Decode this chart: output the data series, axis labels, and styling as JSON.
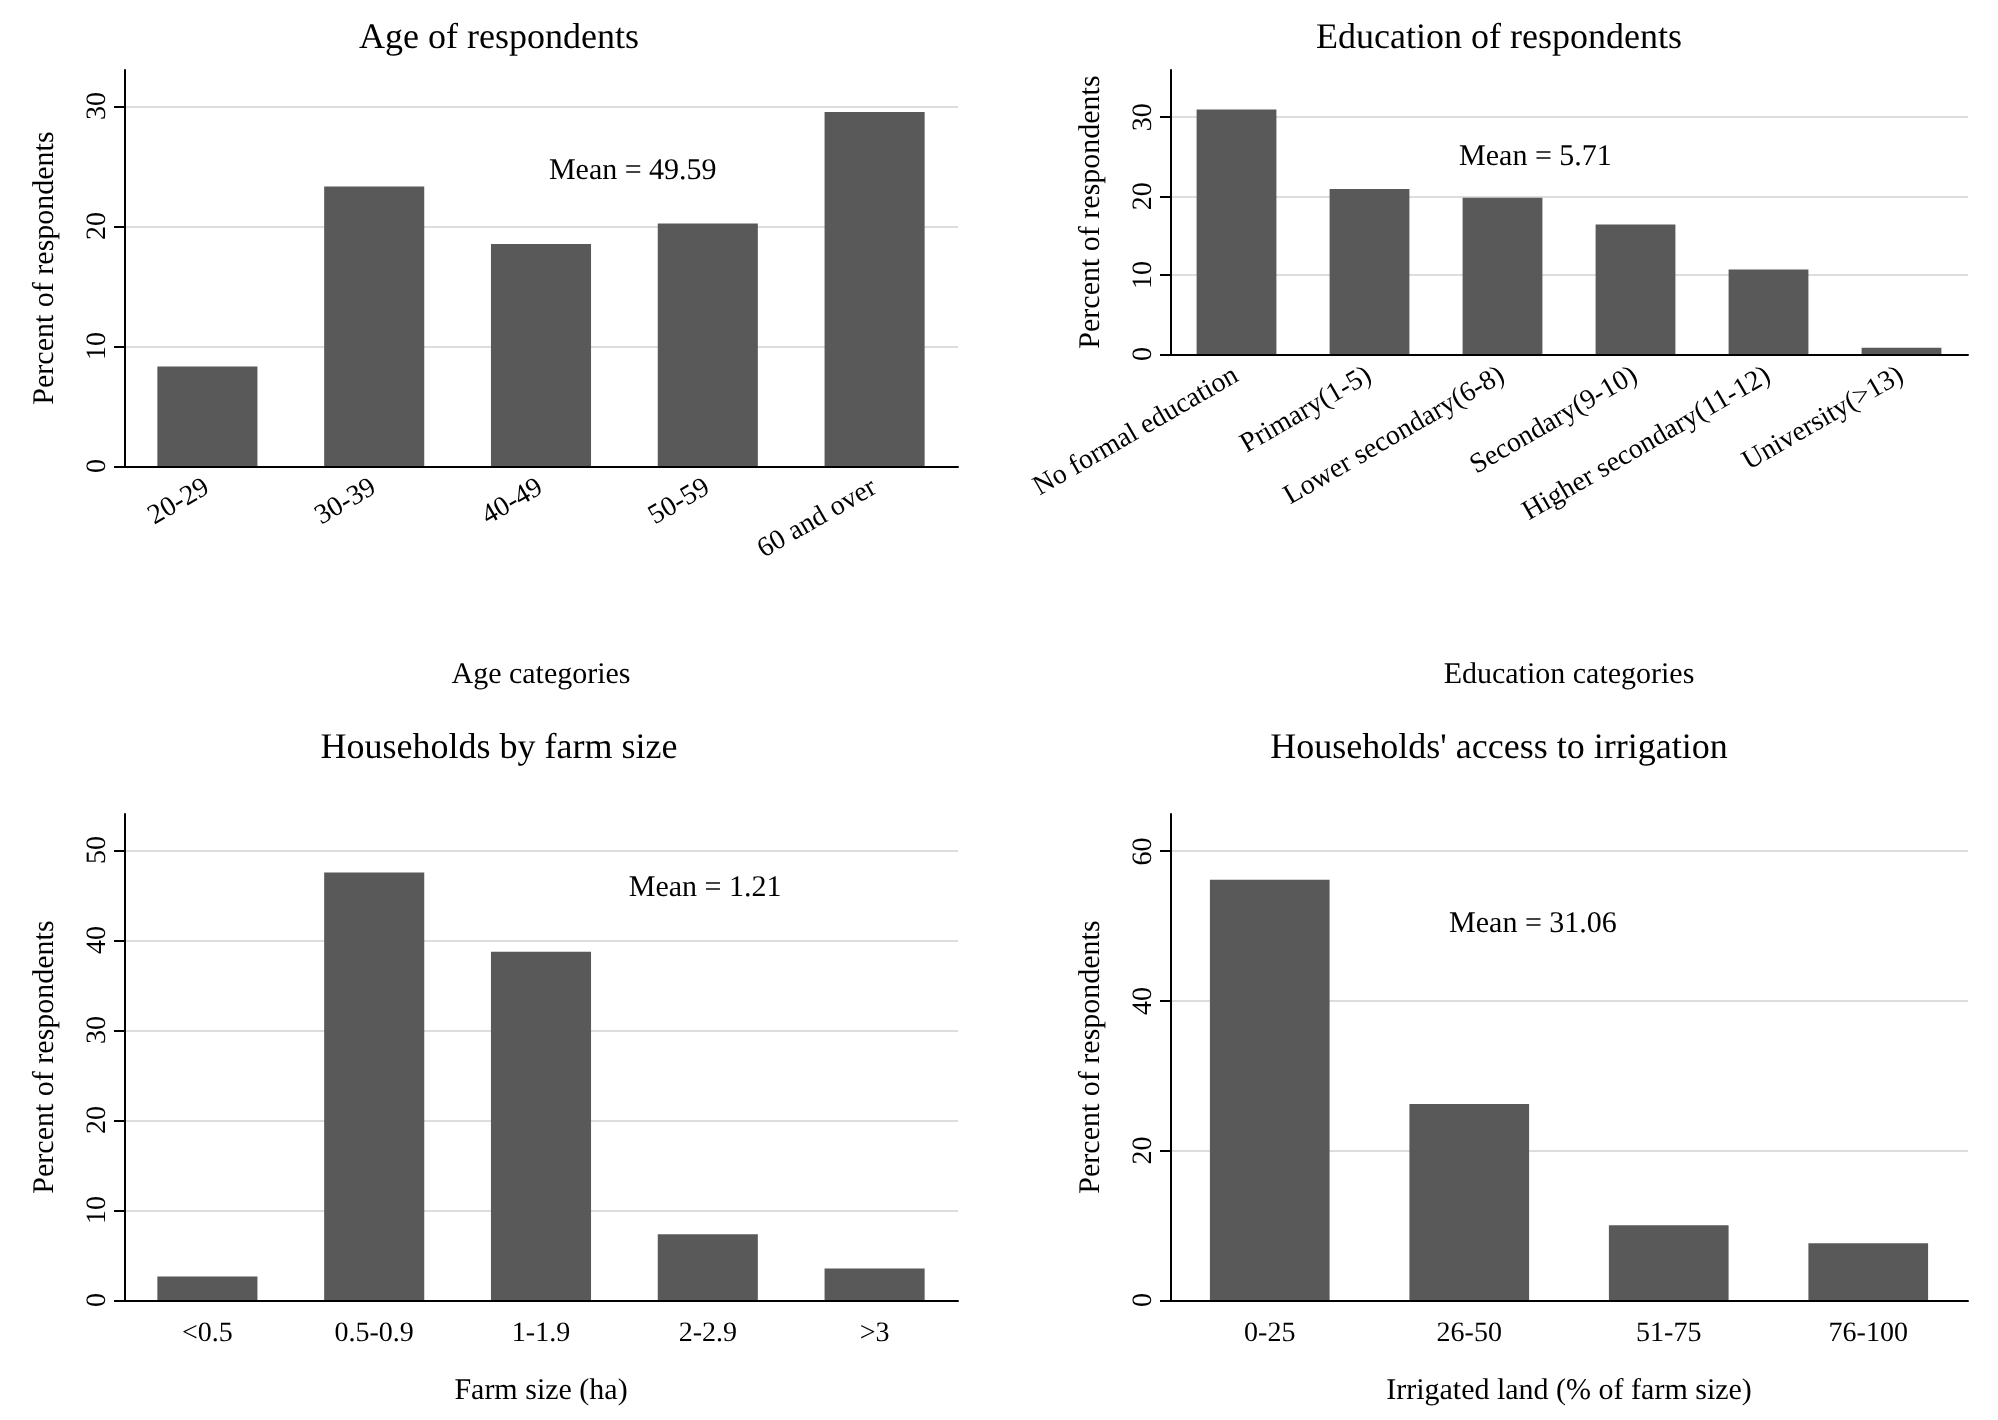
{
  "chart_data": [
    {
      "type": "bar",
      "title": "Age of respondents",
      "xlabel": "Age categories",
      "ylabel": "Percent of respondents",
      "categories": [
        "20-29",
        "30-39",
        "40-49",
        "50-59",
        "60 and over"
      ],
      "values": [
        8.3,
        23.3,
        18.5,
        20.2,
        29.5
      ],
      "color": "#595959",
      "ylim": [
        0,
        33
      ],
      "yticks": [
        0,
        10,
        20,
        30
      ],
      "grid": "y",
      "annotations": [
        "Mean = 49.59"
      ]
    },
    {
      "type": "bar",
      "title": "Education of respondents",
      "xlabel": "Education categories",
      "ylabel": "Percent of respondents",
      "categories": [
        "No formal education",
        "Primary(1-5)",
        "Lower secondary(6-8)",
        "Secondary(9-10)",
        "Higher secondary(11-12)",
        "University(>13)"
      ],
      "values": [
        31,
        20.9,
        19.8,
        16.4,
        10.7,
        0.8
      ],
      "color": "#595959",
      "ylim": [
        0,
        36
      ],
      "yticks": [
        0,
        10,
        20,
        30
      ],
      "grid": "y",
      "annotations": [
        "Mean = 5.71"
      ]
    },
    {
      "type": "bar",
      "title": "Households by farm size",
      "xlabel": "Farm size (ha)",
      "ylabel": "Percent of respondents",
      "categories": [
        "<0.5",
        "0.5-0.9",
        "1-1.9",
        "2-2.9",
        ">3"
      ],
      "values": [
        2.6,
        47.5,
        38.7,
        7.3,
        3.5
      ],
      "color": "#595959",
      "ylim": [
        0,
        54
      ],
      "yticks": [
        0,
        10,
        20,
        30,
        40,
        50
      ],
      "grid": "y",
      "annotations": [
        "Mean = 1.21"
      ]
    },
    {
      "type": "bar",
      "title": "Households' access to irrigation",
      "xlabel": "Irrigated land (% of farm size)",
      "ylabel": "Percent of respondents",
      "categories": [
        "0-25",
        "26-50",
        "51-75",
        "76-100"
      ],
      "values": [
        56.2,
        26.2,
        10,
        7.6
      ],
      "color": "#595959",
      "ylim": [
        0,
        65
      ],
      "yticks": [
        0,
        20,
        40,
        60
      ],
      "grid": "y",
      "annotations": [
        "Mean = 31.06"
      ]
    }
  ]
}
